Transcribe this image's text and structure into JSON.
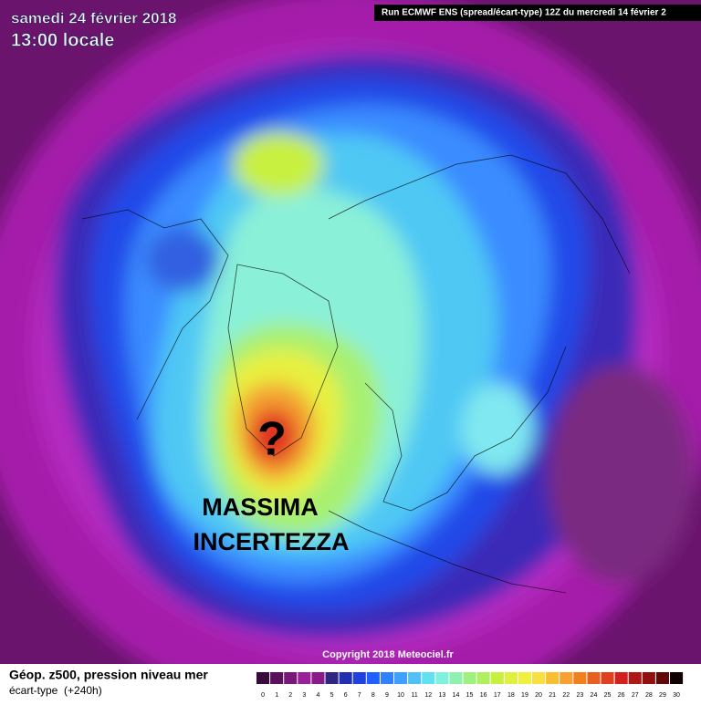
{
  "header": {
    "title": "samedi 24 février 2018",
    "subtitle": "13:00 locale",
    "run": "Run ECMWF ENS (spread/écart-type) 12Z du mercredi 14 février 2"
  },
  "annotation": {
    "mark": "?",
    "line1": "MASSIMA",
    "line2": "INCERTEZZA"
  },
  "copyright": "Copyright 2018 Meteociel.fr",
  "footer": {
    "field": "Géop. z500, pression niveau mer",
    "measure": "écart-type  (+240h)"
  },
  "colorbar": {
    "labels": [
      0,
      1,
      2,
      3,
      4,
      5,
      6,
      7,
      8,
      9,
      10,
      11,
      12,
      13,
      14,
      15,
      16,
      17,
      18,
      19,
      20,
      21,
      22,
      23,
      24,
      25,
      26,
      27,
      28,
      29,
      30
    ],
    "colors": [
      "#3a0a3a",
      "#5a105a",
      "#7a187a",
      "#9a209a",
      "#8a1a8a",
      "#302880",
      "#2030b0",
      "#2040e0",
      "#2060ff",
      "#3080ff",
      "#40a0ff",
      "#50c0f8",
      "#60e0f0",
      "#80f0e0",
      "#90f0b0",
      "#a0f080",
      "#b0f060",
      "#c8f040",
      "#e0f040",
      "#f0f040",
      "#f8e040",
      "#f8c030",
      "#f8a030",
      "#f08020",
      "#e86020",
      "#e04020",
      "#d02020",
      "#b01818",
      "#901010",
      "#600808",
      "#100000"
    ]
  }
}
